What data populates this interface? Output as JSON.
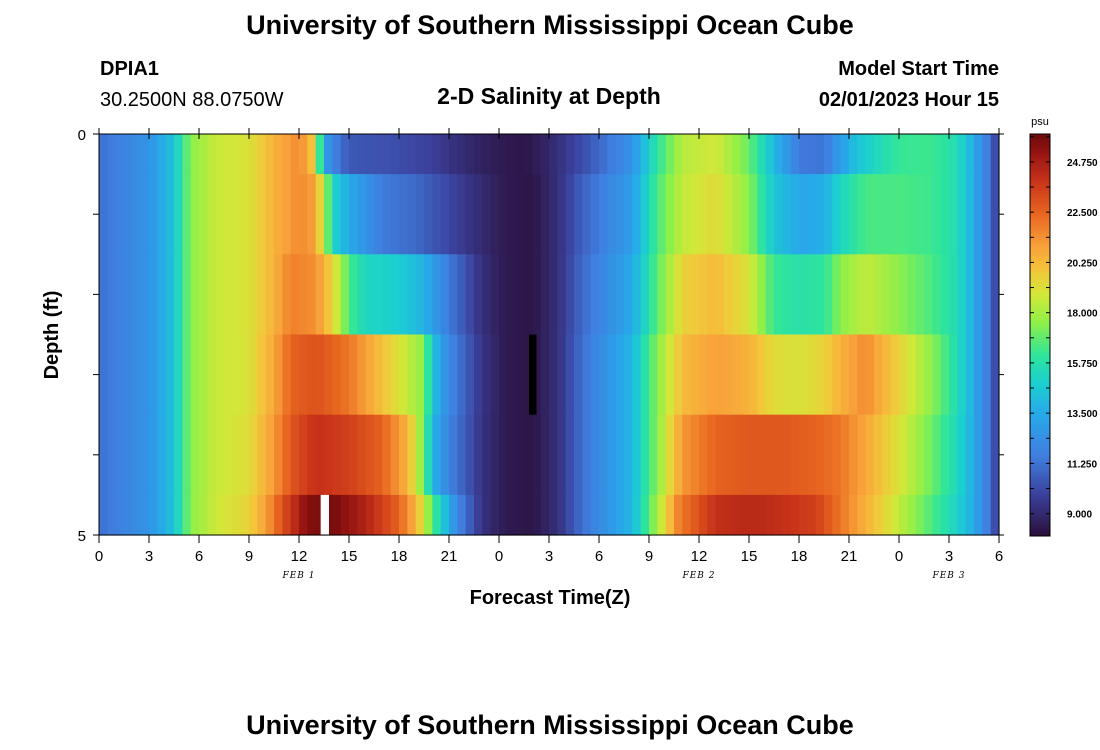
{
  "header": {
    "title": "University of Southern Mississippi Ocean Cube",
    "station_id": "DPIA1",
    "station_coords": "30.2500N  88.0750W",
    "subtitle": "2-D Salinity at Depth",
    "model_label": "Model Start Time",
    "model_time": "02/01/2023 Hour 15",
    "footer_title": "University of Southern Mississippi Ocean Cube"
  },
  "chart_data": {
    "type": "heatmap",
    "title": "2-D Salinity at Depth",
    "xlabel": "Forecast Time(Z)",
    "ylabel": "Depth (ft)",
    "x_hours": [
      0,
      54
    ],
    "ylim": [
      0,
      5
    ],
    "x_tick_labels": [
      "0",
      "3",
      "6",
      "9",
      "12",
      "15",
      "18",
      "21",
      "0",
      "3",
      "6",
      "9",
      "12",
      "15",
      "18",
      "21",
      "0",
      "3",
      "6"
    ],
    "y_tick_labels": [
      "0",
      "5"
    ],
    "day_labels": [
      {
        "hour": 12,
        "text": "FEB 1"
      },
      {
        "hour": 36,
        "text": "FEB 2"
      },
      {
        "hour": 51,
        "text": "FEB 3"
      }
    ],
    "colorbar": {
      "unit": "psu",
      "range": [
        8.0,
        26.0
      ],
      "tick_labels": [
        "24.750",
        "22.500",
        "20.250",
        "18.000",
        "15.750",
        "13.500",
        "11.250",
        "9.000"
      ],
      "tick_values": [
        24.75,
        22.5,
        20.25,
        18.0,
        15.75,
        13.5,
        11.25,
        9.0
      ]
    },
    "layers": [
      {
        "depth_top": 0,
        "depth_bottom": 0.5,
        "keyframes": [
          [
            0,
            11.2
          ],
          [
            3,
            12.5
          ],
          [
            4.5,
            14.5
          ],
          [
            5.5,
            17.5
          ],
          [
            7,
            18.6
          ],
          [
            9,
            19.0
          ],
          [
            10.5,
            20.5
          ],
          [
            12,
            21.5
          ],
          [
            12.7,
            20.5
          ],
          [
            13.2,
            16.5
          ],
          [
            13.8,
            12.2
          ],
          [
            15,
            10.5
          ],
          [
            18,
            10.2
          ],
          [
            20,
            9.8
          ],
          [
            22,
            9.0
          ],
          [
            24,
            8.5
          ],
          [
            25.5,
            8.3
          ],
          [
            27,
            8.9
          ],
          [
            29,
            10.2
          ],
          [
            32,
            12.5
          ],
          [
            33.5,
            16.0
          ],
          [
            35,
            18.3
          ],
          [
            37,
            18.8
          ],
          [
            39,
            17.0
          ],
          [
            40.5,
            14.0
          ],
          [
            42,
            11.5
          ],
          [
            43.5,
            11.3
          ],
          [
            44.5,
            13.0
          ],
          [
            45.5,
            14.5
          ],
          [
            47,
            15.5
          ],
          [
            48,
            16.2
          ],
          [
            50,
            16.3
          ],
          [
            51.5,
            15.5
          ],
          [
            52.5,
            13.5
          ],
          [
            53.5,
            11.0
          ],
          [
            54,
            9.5
          ]
        ]
      },
      {
        "depth_top": 0.5,
        "depth_bottom": 1.5,
        "keyframes": [
          [
            0,
            11.2
          ],
          [
            3,
            12.5
          ],
          [
            4.5,
            14.5
          ],
          [
            5.5,
            17.5
          ],
          [
            7,
            18.6
          ],
          [
            9,
            19.0
          ],
          [
            10.5,
            20.5
          ],
          [
            12,
            21.5
          ],
          [
            13,
            21.0
          ],
          [
            13.6,
            17.5
          ],
          [
            14.2,
            14.8
          ],
          [
            15,
            13.5
          ],
          [
            17,
            11.5
          ],
          [
            19,
            11.0
          ],
          [
            21,
            10.0
          ],
          [
            23,
            9.0
          ],
          [
            24.5,
            8.4
          ],
          [
            26,
            8.3
          ],
          [
            27.5,
            9.2
          ],
          [
            29,
            10.8
          ],
          [
            32,
            13.0
          ],
          [
            33.5,
            16.5
          ],
          [
            35,
            18.5
          ],
          [
            37,
            19.3
          ],
          [
            39,
            17.5
          ],
          [
            40.5,
            14.5
          ],
          [
            42,
            13.4
          ],
          [
            43.5,
            13.6
          ],
          [
            44.5,
            15.2
          ],
          [
            46,
            16.5
          ],
          [
            48,
            16.5
          ],
          [
            50,
            16.3
          ],
          [
            51.5,
            15.5
          ],
          [
            52.5,
            13.5
          ],
          [
            53.5,
            11.0
          ],
          [
            54,
            9.5
          ]
        ]
      },
      {
        "depth_top": 1.5,
        "depth_bottom": 2.5,
        "keyframes": [
          [
            0,
            11.2
          ],
          [
            3,
            12.5
          ],
          [
            4.5,
            14.5
          ],
          [
            5.5,
            17.5
          ],
          [
            7,
            18.6
          ],
          [
            9,
            19.0
          ],
          [
            10.5,
            20.5
          ],
          [
            11.5,
            21.8
          ],
          [
            13,
            21.4
          ],
          [
            14,
            19.5
          ],
          [
            15,
            16.5
          ],
          [
            16,
            15.2
          ],
          [
            18,
            14.8
          ],
          [
            19.5,
            13.8
          ],
          [
            21,
            11.5
          ],
          [
            23,
            9.2
          ],
          [
            24.5,
            8.4
          ],
          [
            26,
            8.3
          ],
          [
            27.5,
            9.2
          ],
          [
            29,
            11.0
          ],
          [
            32,
            13.5
          ],
          [
            33.5,
            16.8
          ],
          [
            35,
            19.5
          ],
          [
            37,
            20.2
          ],
          [
            39,
            19.0
          ],
          [
            40.5,
            16.2
          ],
          [
            42,
            15.8
          ],
          [
            43.5,
            16.0
          ],
          [
            44.5,
            17.5
          ],
          [
            46,
            18.5
          ],
          [
            48,
            17.5
          ],
          [
            50,
            16.5
          ],
          [
            51.5,
            15.5
          ],
          [
            52.5,
            13.5
          ],
          [
            53.5,
            11.0
          ],
          [
            54,
            9.5
          ]
        ]
      },
      {
        "depth_top": 2.5,
        "depth_bottom": 3.5,
        "keyframes": [
          [
            0,
            11.2
          ],
          [
            3,
            12.5
          ],
          [
            4.5,
            14.5
          ],
          [
            5.5,
            17.5
          ],
          [
            7,
            18.6
          ],
          [
            9,
            19.0
          ],
          [
            10.5,
            20.8
          ],
          [
            11.5,
            22.5
          ],
          [
            13,
            23.0
          ],
          [
            15,
            22.0
          ],
          [
            16.5,
            20.5
          ],
          [
            18,
            19.0
          ],
          [
            19.5,
            17.5
          ],
          [
            20,
            14.5
          ],
          [
            21,
            12.0
          ],
          [
            23,
            9.4
          ],
          [
            24.5,
            8.4
          ],
          [
            26,
            8.3
          ],
          [
            27.5,
            9.2
          ],
          [
            29,
            11.2
          ],
          [
            32,
            14.0
          ],
          [
            33.5,
            17.5
          ],
          [
            35,
            20.2
          ],
          [
            37,
            21.0
          ],
          [
            39,
            20.5
          ],
          [
            40.5,
            19.2
          ],
          [
            42,
            19.0
          ],
          [
            43.5,
            19.5
          ],
          [
            44.5,
            20.5
          ],
          [
            46,
            21.5
          ],
          [
            48,
            19.5
          ],
          [
            50,
            17.5
          ],
          [
            51.5,
            15.5
          ],
          [
            52.5,
            13.5
          ],
          [
            53.5,
            11.0
          ],
          [
            54,
            9.5
          ]
        ]
      },
      {
        "depth_top": 3.5,
        "depth_bottom": 4.5,
        "keyframes": [
          [
            0,
            11.2
          ],
          [
            3,
            12.5
          ],
          [
            4.5,
            14.5
          ],
          [
            5.5,
            17.5
          ],
          [
            7,
            18.6
          ],
          [
            9,
            19.2
          ],
          [
            10.5,
            21.2
          ],
          [
            11.5,
            22.8
          ],
          [
            13,
            24.0
          ],
          [
            15,
            23.5
          ],
          [
            17,
            22.5
          ],
          [
            18.5,
            20.5
          ],
          [
            19.5,
            17.0
          ],
          [
            20,
            14.0
          ],
          [
            21,
            11.8
          ],
          [
            23,
            9.3
          ],
          [
            24.5,
            8.4
          ],
          [
            26,
            8.3
          ],
          [
            27.5,
            9.2
          ],
          [
            29,
            11.2
          ],
          [
            32,
            14.0
          ],
          [
            33.5,
            17.5
          ],
          [
            35,
            21.2
          ],
          [
            37,
            22.5
          ],
          [
            39,
            22.8
          ],
          [
            41,
            22.8
          ],
          [
            43,
            22.5
          ],
          [
            44.5,
            22.0
          ],
          [
            46,
            20.8
          ],
          [
            48,
            19.0
          ],
          [
            50,
            17.0
          ],
          [
            51.5,
            15.3
          ],
          [
            52.5,
            13.5
          ],
          [
            53.5,
            11.0
          ],
          [
            54,
            9.5
          ]
        ]
      },
      {
        "depth_top": 4.5,
        "depth_bottom": 5.0,
        "keyframes": [
          [
            0,
            11.2
          ],
          [
            3,
            12.5
          ],
          [
            4.5,
            14.5
          ],
          [
            5.5,
            17.5
          ],
          [
            7,
            18.7
          ],
          [
            9,
            19.5
          ],
          [
            10,
            21.0
          ],
          [
            11,
            23.0
          ],
          [
            12.5,
            25.5
          ],
          [
            14,
            25.8
          ],
          [
            16,
            24.5
          ],
          [
            18,
            22.5
          ],
          [
            19,
            20.5
          ],
          [
            19.8,
            17.5
          ],
          [
            20.5,
            15.0
          ],
          [
            21.5,
            12.0
          ],
          [
            23,
            9.3
          ],
          [
            24.5,
            8.4
          ],
          [
            26,
            8.3
          ],
          [
            27.5,
            9.2
          ],
          [
            29,
            11.2
          ],
          [
            32,
            14.0
          ],
          [
            33.5,
            18.0
          ],
          [
            34.8,
            21.8
          ],
          [
            37,
            24.0
          ],
          [
            39,
            24.3
          ],
          [
            41,
            24.0
          ],
          [
            43,
            23.5
          ],
          [
            44.5,
            22.0
          ],
          [
            46,
            20.5
          ],
          [
            48,
            18.5
          ],
          [
            50,
            16.5
          ],
          [
            51.5,
            15.0
          ],
          [
            52.5,
            13.5
          ],
          [
            53.5,
            11.0
          ],
          [
            54,
            9.5
          ]
        ]
      }
    ],
    "masks": [
      {
        "color": "#ffffff",
        "hour_start": 13.3,
        "hour_end": 13.8,
        "depth_top": 4.5,
        "depth_bottom": 5.0
      },
      {
        "color": "#000000",
        "hour_start": 25.8,
        "hour_end": 26.25,
        "depth_top": 2.5,
        "depth_bottom": 3.5
      }
    ]
  }
}
